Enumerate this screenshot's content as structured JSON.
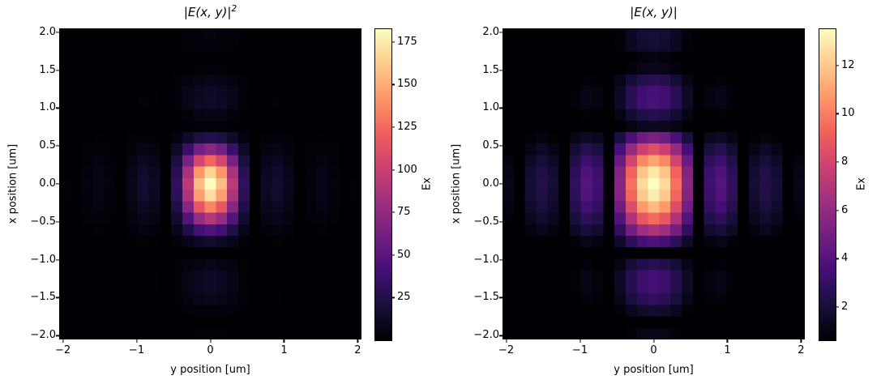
{
  "figure": {
    "background": "#ffffff"
  },
  "chart_data": [
    {
      "type": "heatmap",
      "title": {
        "text": "|E(x, y)|",
        "sup": "2"
      },
      "quantity": "|E(x,y)|^2",
      "xlabel": "y position [um]",
      "ylabel": "x position [um]",
      "extent": [
        -2.05,
        2.05,
        -2.05,
        2.05
      ],
      "grid": [
        27,
        27
      ],
      "xticks": {
        "values": [
          -2,
          -1,
          0,
          1,
          2
        ],
        "labels": [
          "−2",
          "−1",
          "0",
          "1",
          "2"
        ]
      },
      "yticks": {
        "values": [
          2.0,
          1.5,
          1.0,
          0.5,
          0.0,
          -0.5,
          -1.0,
          -1.5,
          -2.0
        ],
        "labels": [
          "2.0",
          "1.5",
          "1.0",
          "0.5",
          "0.0",
          "−0.5",
          "−1.0",
          "−1.5",
          "−2.0"
        ]
      },
      "colormap": "magma",
      "vmin": 0.5,
      "vmax": 183,
      "peak_value": 183,
      "colorbar": {
        "label": "Ex",
        "tick_values": [
          25,
          50,
          75,
          100,
          125,
          150,
          175
        ],
        "tick_labels": [
          "25",
          "50",
          "75",
          "100",
          "125",
          "150",
          "175"
        ]
      }
    },
    {
      "type": "heatmap",
      "title": {
        "text": "|E(x, y)|",
        "sup": ""
      },
      "quantity": "|E(x,y)|",
      "xlabel": "y position [um]",
      "ylabel": "x position [um]",
      "extent": [
        -2.05,
        2.05,
        -2.05,
        2.05
      ],
      "grid": [
        27,
        27
      ],
      "xticks": {
        "values": [
          -2,
          -1,
          0,
          1,
          2
        ],
        "labels": [
          "−2",
          "−1",
          "0",
          "1",
          "2"
        ]
      },
      "yticks": {
        "values": [
          2.0,
          1.5,
          1.0,
          0.5,
          0.0,
          -0.5,
          -1.0,
          -1.5,
          -2.0
        ],
        "labels": [
          "2.0",
          "1.5",
          "1.0",
          "0.5",
          "0.0",
          "−0.5",
          "−1.0",
          "−1.5",
          "−2.0"
        ]
      },
      "colormap": "magma",
      "vmin": 0.66,
      "vmax": 13.53,
      "peak_value": 13.53,
      "colorbar": {
        "label": "Ex",
        "tick_values": [
          2,
          4,
          6,
          8,
          10,
          12
        ],
        "tick_labels": [
          "2",
          "4",
          "6",
          "8",
          "10",
          "12"
        ]
      }
    }
  ],
  "field_model": {
    "description": "central bright lobe at (0,0) with sinc-like side lobes; |E| peak 13.53, |E|^2 peak 183",
    "grid_n": 27,
    "extent_half": 2.05,
    "amplitude": 13.53,
    "wy": 0.62,
    "wx_up": 0.8,
    "wx_down": 0.92,
    "exponent": 0.75,
    "env_x": 3.2,
    "env_y": 3.6
  },
  "colormap_stops": [
    [
      0.0,
      "#000004"
    ],
    [
      0.111,
      "#180f3d"
    ],
    [
      0.222,
      "#440f76"
    ],
    [
      0.333,
      "#721f81"
    ],
    [
      0.444,
      "#9e2f7f"
    ],
    [
      0.556,
      "#cd4071"
    ],
    [
      0.667,
      "#f1605d"
    ],
    [
      0.778,
      "#fd9668"
    ],
    [
      0.889,
      "#feca8d"
    ],
    [
      1.0,
      "#fcfdbf"
    ]
  ]
}
